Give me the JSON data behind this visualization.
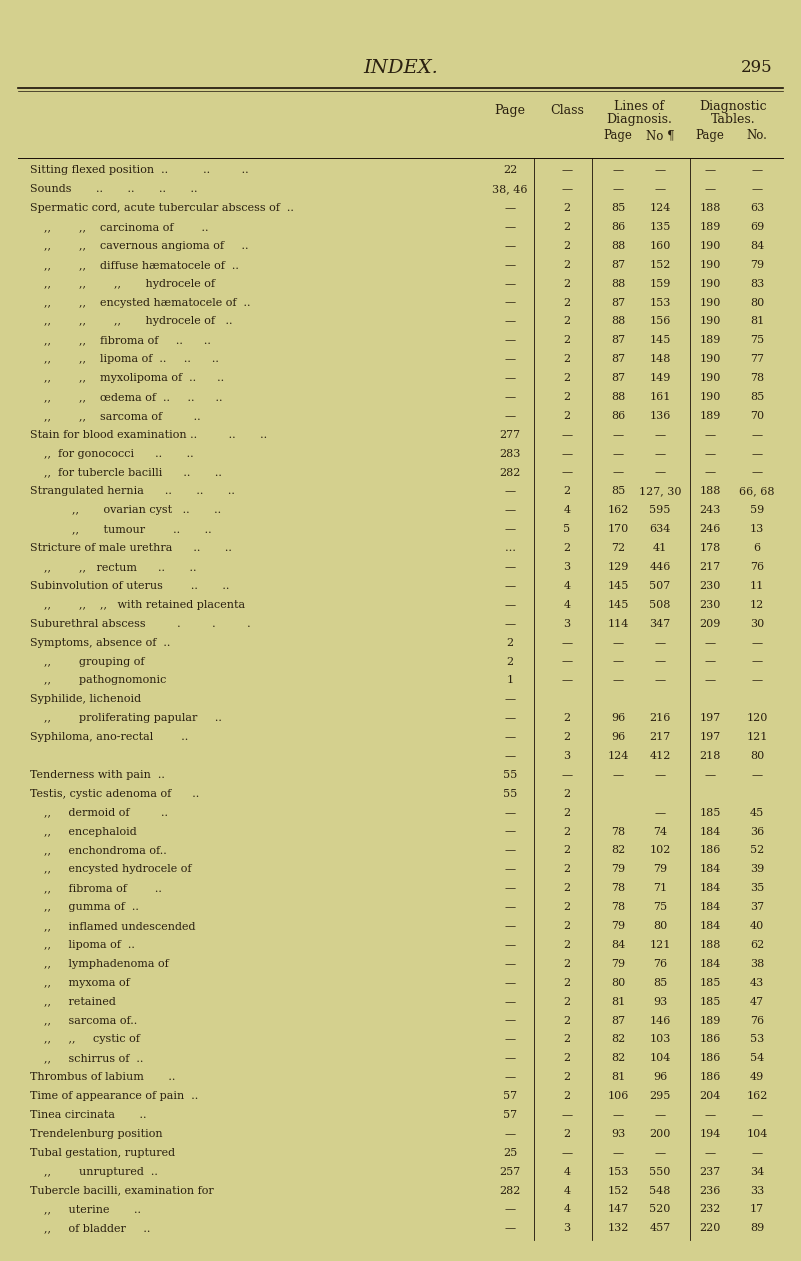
{
  "bg_color": "#d4d08e",
  "title": "INDEX.",
  "page_num": "295",
  "rows": [
    {
      "term": "Sitting flexed position  ..          ..         ..",
      "page": "22",
      "cls": "—",
      "lp": "—",
      "ln": "—",
      "dp": "—",
      "dn": "—"
    },
    {
      "term": "Sounds       ..       ..       ..       ..",
      "page": "38, 46",
      "cls": "—",
      "lp": "—",
      "ln": "—",
      "dp": "—",
      "dn": "—"
    },
    {
      "term": "Spermatic cord, acute tubercular abscess of  ..",
      "page": "—",
      "cls": "2",
      "lp": "85",
      "ln": "124",
      "dp": "188",
      "dn": "63"
    },
    {
      "term": "    ,,        ,,    carcinoma of        ..",
      "page": "—",
      "cls": "2",
      "lp": "86",
      "ln": "135",
      "dp": "189",
      "dn": "69"
    },
    {
      "term": "    ,,        ,,    cavernous angioma of     ..",
      "page": "—",
      "cls": "2",
      "lp": "88",
      "ln": "160",
      "dp": "190",
      "dn": "84"
    },
    {
      "term": "    ,,        ,,    diffuse hæmatocele of  ..",
      "page": "—",
      "cls": "2",
      "lp": "87",
      "ln": "152",
      "dp": "190",
      "dn": "79"
    },
    {
      "term": "    ,,        ,,        ,,       hydrocele of",
      "page": "—",
      "cls": "2",
      "lp": "88",
      "ln": "159",
      "dp": "190",
      "dn": "83"
    },
    {
      "term": "    ,,        ,,    encysted hæmatocele of  ..",
      "page": "—",
      "cls": "2",
      "lp": "87",
      "ln": "153",
      "dp": "190",
      "dn": "80"
    },
    {
      "term": "    ,,        ,,        ,,       hydrocele of   ..",
      "page": "—",
      "cls": "2",
      "lp": "88",
      "ln": "156",
      "dp": "190",
      "dn": "81"
    },
    {
      "term": "    ,,        ,,    fibroma of     ..      ..",
      "page": "—",
      "cls": "2",
      "lp": "87",
      "ln": "145",
      "dp": "189",
      "dn": "75"
    },
    {
      "term": "    ,,        ,,    lipoma of  ..     ..      ..",
      "page": "—",
      "cls": "2",
      "lp": "87",
      "ln": "148",
      "dp": "190",
      "dn": "77"
    },
    {
      "term": "    ,,        ,,    myxolipoma of  ..      ..",
      "page": "—",
      "cls": "2",
      "lp": "87",
      "ln": "149",
      "dp": "190",
      "dn": "78"
    },
    {
      "term": "    ,,        ,,    œdema of  ..     ..      ..",
      "page": "—",
      "cls": "2",
      "lp": "88",
      "ln": "161",
      "dp": "190",
      "dn": "85"
    },
    {
      "term": "    ,,        ,,    sarcoma of         ..",
      "page": "—",
      "cls": "2",
      "lp": "86",
      "ln": "136",
      "dp": "189",
      "dn": "70"
    },
    {
      "term": "Stain for blood examination ..         ..       ..",
      "page": "277",
      "cls": "—",
      "lp": "—",
      "ln": "—",
      "dp": "—",
      "dn": "—"
    },
    {
      "term": "    ,,  for gonococci      ..       ..",
      "page": "283",
      "cls": "—",
      "lp": "—",
      "ln": "—",
      "dp": "—",
      "dn": "—"
    },
    {
      "term": "    ,,  for tubercle bacilli      ..       ..",
      "page": "282",
      "cls": "—",
      "lp": "—",
      "ln": "—",
      "dp": "—",
      "dn": "—"
    },
    {
      "term": "Strangulated hernia      ..       ..       ..",
      "page": "—",
      "cls": "2",
      "lp": "85",
      "ln": "127, 30",
      "dp": "188",
      "dn": "66, 68"
    },
    {
      "term": "            ,,       ovarian cyst   ..       ..",
      "page": "—",
      "cls": "4",
      "lp": "162",
      "ln": "595",
      "dp": "243",
      "dn": "59"
    },
    {
      "term": "            ,,       tumour        ..       ..",
      "page": "—",
      "cls": "5",
      "lp": "170",
      "ln": "634",
      "dp": "246",
      "dn": "13"
    },
    {
      "term": "Stricture of male urethra      ..       ..",
      "page": "…",
      "cls": "2",
      "lp": "72",
      "ln": "41",
      "dp": "178",
      "dn": "6"
    },
    {
      "term": "    ,,        ,,   rectum      ..       ..",
      "page": "—",
      "cls": "3",
      "lp": "129",
      "ln": "446",
      "dp": "217",
      "dn": "76"
    },
    {
      "term": "Subinvolution of uterus        ..       ..",
      "page": "—",
      "cls": "4",
      "lp": "145",
      "ln": "507",
      "dp": "230",
      "dn": "11"
    },
    {
      "term": "    ,,        ,,    ,,   with retained placenta",
      "page": "—",
      "cls": "4",
      "lp": "145",
      "ln": "508",
      "dp": "230",
      "dn": "12"
    },
    {
      "term": "Suburethral abscess         .         .         .",
      "page": "—",
      "cls": "3",
      "lp": "114",
      "ln": "347",
      "dp": "209",
      "dn": "30"
    },
    {
      "term": "Symptoms, absence of  ..",
      "page": "2",
      "cls": "—",
      "lp": "—",
      "ln": "—",
      "dp": "—",
      "dn": "—"
    },
    {
      "term": "    ,,        grouping of",
      "page": "2",
      "cls": "—",
      "lp": "—",
      "ln": "—",
      "dp": "—",
      "dn": "—"
    },
    {
      "term": "    ,,        pathognomonic",
      "page": "1",
      "cls": "—",
      "lp": "—",
      "ln": "—",
      "dp": "—",
      "dn": "—"
    },
    {
      "term": "Syphilide, lichenoid",
      "page": "—",
      "cls": "",
      "lp": "",
      "ln": "",
      "dp": "",
      "dn": ""
    },
    {
      "term": "    ,,        proliferating papular     ..",
      "page": "—",
      "cls": "2",
      "lp": "96",
      "ln": "216",
      "dp": "197",
      "dn": "120"
    },
    {
      "term": "Syphiloma, ano-rectal        ..",
      "page": "—",
      "cls": "2",
      "lp": "96",
      "ln": "217",
      "dp": "197",
      "dn": "121"
    },
    {
      "term": "",
      "page": "—",
      "cls": "3",
      "lp": "124",
      "ln": "412",
      "dp": "218",
      "dn": "80"
    },
    {
      "term": "Tenderness with pain  ..",
      "page": "55",
      "cls": "—",
      "lp": "—",
      "ln": "—",
      "dp": "—",
      "dn": "—"
    },
    {
      "term": "Testis, cystic adenoma of      ..",
      "page": "55",
      "cls": "2",
      "lp": "",
      "ln": "",
      "dp": "",
      "dn": ""
    },
    {
      "term": "    ,,     dermoid of         ..",
      "page": "—",
      "cls": "2",
      "lp": "",
      "ln": "—",
      "dp": "185",
      "dn": "45"
    },
    {
      "term": "    ,,     encephaloid",
      "page": "—",
      "cls": "2",
      "lp": "78",
      "ln": "74",
      "dp": "184",
      "dn": "36"
    },
    {
      "term": "    ,,     enchondroma of..",
      "page": "—",
      "cls": "2",
      "lp": "82",
      "ln": "102",
      "dp": "186",
      "dn": "52"
    },
    {
      "term": "    ,,     encysted hydrocele of",
      "page": "—",
      "cls": "2",
      "lp": "79",
      "ln": "79",
      "dp": "184",
      "dn": "39"
    },
    {
      "term": "    ,,     fibroma of        ..",
      "page": "—",
      "cls": "2",
      "lp": "78",
      "ln": "71",
      "dp": "184",
      "dn": "35"
    },
    {
      "term": "    ,,     gumma of  ..",
      "page": "—",
      "cls": "2",
      "lp": "78",
      "ln": "75",
      "dp": "184",
      "dn": "37"
    },
    {
      "term": "    ,,     inflamed undescended",
      "page": "—",
      "cls": "2",
      "lp": "79",
      "ln": "80",
      "dp": "184",
      "dn": "40"
    },
    {
      "term": "    ,,     lipoma of  ..",
      "page": "—",
      "cls": "2",
      "lp": "84",
      "ln": "121",
      "dp": "188",
      "dn": "62"
    },
    {
      "term": "    ,,     lymphadenoma of",
      "page": "—",
      "cls": "2",
      "lp": "79",
      "ln": "76",
      "dp": "184",
      "dn": "38"
    },
    {
      "term": "    ,,     myxoma of",
      "page": "—",
      "cls": "2",
      "lp": "80",
      "ln": "85",
      "dp": "185",
      "dn": "43"
    },
    {
      "term": "    ,,     retained",
      "page": "—",
      "cls": "2",
      "lp": "81",
      "ln": "93",
      "dp": "185",
      "dn": "47"
    },
    {
      "term": "    ,,     sarcoma of..",
      "page": "—",
      "cls": "2",
      "lp": "87",
      "ln": "146",
      "dp": "189",
      "dn": "76"
    },
    {
      "term": "    ,,     ,,     cystic of",
      "page": "—",
      "cls": "2",
      "lp": "82",
      "ln": "103",
      "dp": "186",
      "dn": "53"
    },
    {
      "term": "    ,,     schirrus of  ..",
      "page": "—",
      "cls": "2",
      "lp": "82",
      "ln": "104",
      "dp": "186",
      "dn": "54"
    },
    {
      "term": "Thrombus of labium       ..",
      "page": "—",
      "cls": "2",
      "lp": "81",
      "ln": "96",
      "dp": "186",
      "dn": "49"
    },
    {
      "term": "Time of appearance of pain  ..",
      "page": "57",
      "cls": "2",
      "lp": "106",
      "ln": "295",
      "dp": "204",
      "dn": "162"
    },
    {
      "term": "Tinea circinata       ..",
      "page": "57",
      "cls": "—",
      "lp": "—",
      "ln": "—",
      "dp": "—",
      "dn": "—"
    },
    {
      "term": "Trendelenburg position",
      "page": "—",
      "cls": "2",
      "lp": "93",
      "ln": "200",
      "dp": "194",
      "dn": "104"
    },
    {
      "term": "Tubal gestation, ruptured",
      "page": "25",
      "cls": "—",
      "lp": "—",
      "ln": "—",
      "dp": "—",
      "dn": "—"
    },
    {
      "term": "    ,,        unruptured  ..",
      "page": "257",
      "cls": "4",
      "lp": "153",
      "ln": "550",
      "dp": "237",
      "dn": "34"
    },
    {
      "term": "Tubercle bacilli, examination for",
      "page": "282",
      "cls": "4",
      "lp": "152",
      "ln": "548",
      "dp": "236",
      "dn": "33"
    },
    {
      "term": "    ,,     uterine       ..",
      "page": "—",
      "cls": "4",
      "lp": "147",
      "ln": "520",
      "dp": "232",
      "dn": "17"
    },
    {
      "term": "    ,,     of bladder     ..",
      "page": "—",
      "cls": "3",
      "lp": "132",
      "ln": "457",
      "dp": "220",
      "dn": "89"
    }
  ]
}
